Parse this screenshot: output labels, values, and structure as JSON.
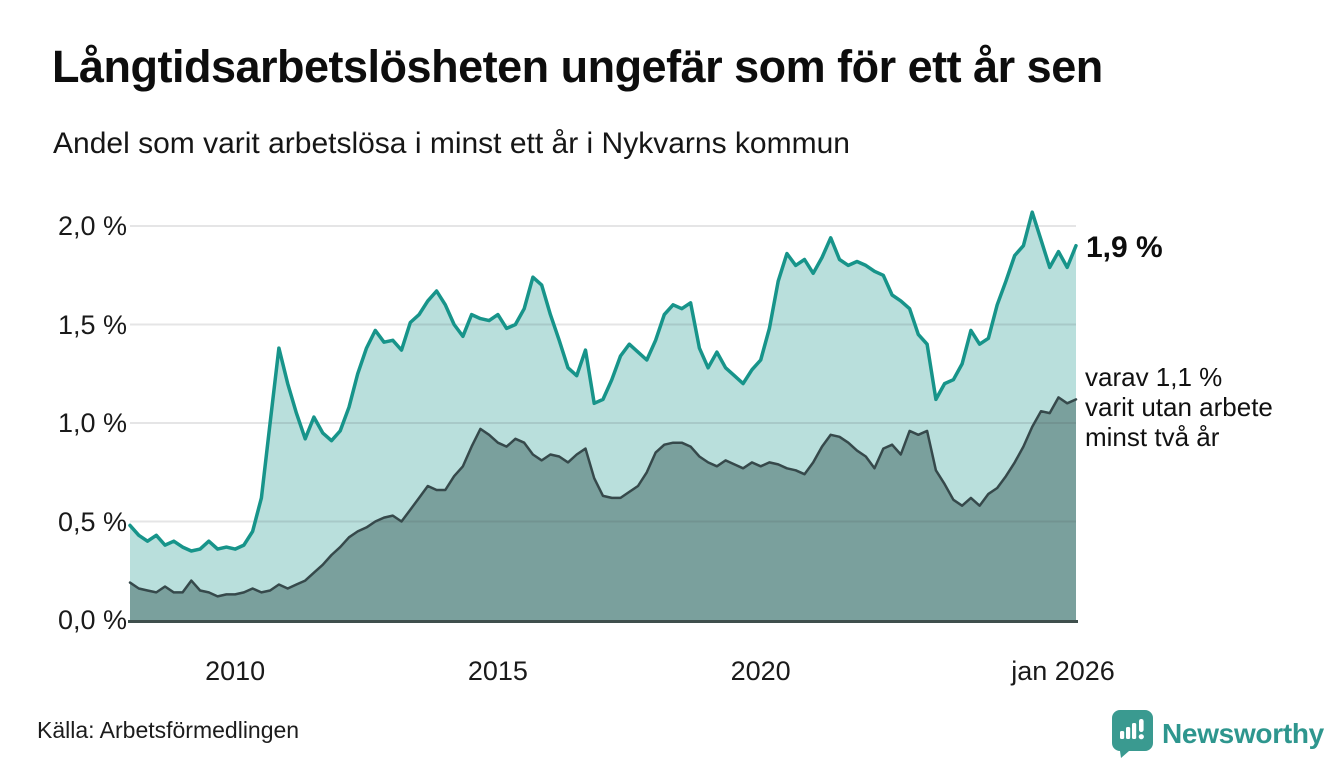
{
  "header": {
    "title": "Långtidsarbetslösheten ungefär som för ett år sen",
    "subtitle": "Andel som varit arbetslösa i minst ett år i Nykvarns kommun"
  },
  "footer": {
    "source": "Källa: Arbetsförmedlingen",
    "brand": "Newsworthy"
  },
  "chart_data": {
    "type": "area",
    "title": "Långtidsarbetslösheten ungefär som för ett år sen",
    "subtitle": "Andel som varit arbetslösa i minst ett år i Nykvarns kommun",
    "unit": "%",
    "x_start_year": 2008.0,
    "x_end_year": 2026.0,
    "x_step_years": 0.1667,
    "ylim": [
      0,
      2.1
    ],
    "grid": "horizontal",
    "legend_position": "none",
    "yticks": [
      {
        "value": 0.0,
        "label": "0,0 %"
      },
      {
        "value": 0.5,
        "label": "0,5 %"
      },
      {
        "value": 1.0,
        "label": "1,0 %"
      },
      {
        "value": 1.5,
        "label": "1,5 %"
      },
      {
        "value": 2.0,
        "label": "2,0 %"
      }
    ],
    "xticks": [
      {
        "value": 2010,
        "label": "2010",
        "dx": 0
      },
      {
        "value": 2015,
        "label": "2015",
        "dx": 0
      },
      {
        "value": 2020,
        "label": "2020",
        "dx": 0
      },
      {
        "value": 2026.0,
        "label": "jan 2026",
        "dx": -13
      }
    ],
    "series": [
      {
        "name": "Arbetslösa minst ett år",
        "latest_value": 1.9,
        "line_color": "#17948a",
        "fill_color": "rgba(23,148,138,0.30)",
        "line_width": 3.5,
        "values": [
          0.48,
          0.43,
          0.4,
          0.43,
          0.38,
          0.4,
          0.37,
          0.35,
          0.36,
          0.4,
          0.36,
          0.37,
          0.36,
          0.38,
          0.45,
          0.62,
          1.0,
          1.38,
          1.2,
          1.05,
          0.92,
          1.03,
          0.95,
          0.91,
          0.96,
          1.08,
          1.25,
          1.38,
          1.47,
          1.41,
          1.42,
          1.37,
          1.51,
          1.55,
          1.62,
          1.67,
          1.6,
          1.5,
          1.44,
          1.55,
          1.53,
          1.52,
          1.55,
          1.48,
          1.5,
          1.58,
          1.74,
          1.7,
          1.55,
          1.42,
          1.28,
          1.24,
          1.37,
          1.1,
          1.12,
          1.22,
          1.34,
          1.4,
          1.36,
          1.32,
          1.42,
          1.55,
          1.6,
          1.58,
          1.61,
          1.38,
          1.28,
          1.36,
          1.28,
          1.24,
          1.2,
          1.27,
          1.32,
          1.48,
          1.72,
          1.86,
          1.8,
          1.83,
          1.76,
          1.84,
          1.94,
          1.83,
          1.8,
          1.82,
          1.8,
          1.77,
          1.75,
          1.65,
          1.62,
          1.58,
          1.45,
          1.4,
          1.12,
          1.2,
          1.22,
          1.3,
          1.47,
          1.4,
          1.43,
          1.6,
          1.72,
          1.85,
          1.9,
          2.07,
          1.93,
          1.79,
          1.87,
          1.79,
          1.9
        ]
      },
      {
        "name": "varav arbetslösa minst två år",
        "latest_value": 1.1,
        "line_color": "#36494b",
        "fill_color": "rgba(35,75,70,0.42)",
        "line_width": 2.5,
        "values": [
          0.19,
          0.16,
          0.15,
          0.14,
          0.17,
          0.14,
          0.14,
          0.2,
          0.15,
          0.14,
          0.12,
          0.13,
          0.13,
          0.14,
          0.16,
          0.14,
          0.15,
          0.18,
          0.16,
          0.18,
          0.2,
          0.24,
          0.28,
          0.33,
          0.37,
          0.42,
          0.45,
          0.47,
          0.5,
          0.52,
          0.53,
          0.5,
          0.56,
          0.62,
          0.68,
          0.66,
          0.66,
          0.73,
          0.78,
          0.88,
          0.97,
          0.94,
          0.9,
          0.88,
          0.92,
          0.9,
          0.84,
          0.81,
          0.84,
          0.83,
          0.8,
          0.84,
          0.87,
          0.72,
          0.63,
          0.62,
          0.62,
          0.65,
          0.68,
          0.75,
          0.85,
          0.89,
          0.9,
          0.9,
          0.88,
          0.83,
          0.8,
          0.78,
          0.81,
          0.79,
          0.77,
          0.8,
          0.78,
          0.8,
          0.79,
          0.77,
          0.76,
          0.74,
          0.8,
          0.88,
          0.94,
          0.93,
          0.9,
          0.86,
          0.83,
          0.77,
          0.87,
          0.89,
          0.84,
          0.96,
          0.94,
          0.96,
          0.76,
          0.69,
          0.61,
          0.58,
          0.62,
          0.58,
          0.64,
          0.67,
          0.73,
          0.8,
          0.88,
          0.98,
          1.06,
          1.05,
          1.13,
          1.1,
          1.12
        ]
      }
    ],
    "annotations": {
      "total": "1,9 %",
      "detail": "varav 1,1 %\nvarit utan arbete\nminst två år"
    },
    "colors": {
      "accent_teal": "#17948a",
      "dark_slate": "#36494b",
      "axis_line": "#3f4f4d",
      "gridline": "rgba(70,70,80,0.14)",
      "brand_teal": "#2e968e",
      "logo_teal": "#3a9a90"
    }
  }
}
